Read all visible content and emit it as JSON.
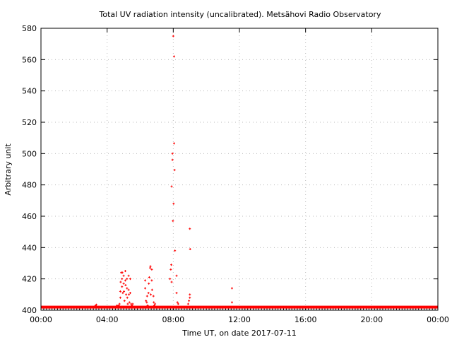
{
  "chart_data": {
    "type": "scatter",
    "title": "Total UV radiation intensity (uncalibrated). Metsähovi Radio Observatory",
    "xlabel": "Time UT, on date 2017-07-11",
    "ylabel": "Arbitrary unit",
    "xlim": [
      0,
      24
    ],
    "ylim": [
      400,
      580
    ],
    "xticks": [
      0,
      4,
      8,
      12,
      16,
      20,
      24
    ],
    "xtick_labels": [
      "00:00",
      "04:00",
      "08:00",
      "12:00",
      "16:00",
      "20:00",
      "00:00"
    ],
    "yticks": [
      400,
      420,
      440,
      460,
      480,
      500,
      520,
      540,
      560,
      580
    ],
    "ytick_labels": [
      "400",
      "420",
      "440",
      "460",
      "480",
      "500",
      "520",
      "540",
      "560",
      "580"
    ],
    "grid": true,
    "color": "#ff0000",
    "baseline": {
      "x": [
        0,
        24
      ],
      "y": 402
    },
    "points": [
      [
        3.3,
        403
      ],
      [
        3.35,
        403.5
      ],
      [
        4.6,
        403
      ],
      [
        4.7,
        403
      ],
      [
        4.75,
        404
      ],
      [
        4.8,
        408
      ],
      [
        4.8,
        412
      ],
      [
        4.82,
        418
      ],
      [
        4.85,
        424
      ],
      [
        4.9,
        415
      ],
      [
        4.9,
        420
      ],
      [
        4.92,
        424
      ],
      [
        4.95,
        411
      ],
      [
        5.0,
        417
      ],
      [
        5.0,
        422
      ],
      [
        5.02,
        412
      ],
      [
        5.05,
        406
      ],
      [
        5.1,
        425
      ],
      [
        5.1,
        419
      ],
      [
        5.12,
        416
      ],
      [
        5.15,
        410
      ],
      [
        5.2,
        420
      ],
      [
        5.2,
        414
      ],
      [
        5.22,
        408
      ],
      [
        5.25,
        404
      ],
      [
        5.3,
        422
      ],
      [
        5.3,
        413
      ],
      [
        5.32,
        410
      ],
      [
        5.35,
        405
      ],
      [
        5.4,
        420
      ],
      [
        5.4,
        411
      ],
      [
        5.45,
        404
      ],
      [
        5.5,
        403
      ],
      [
        5.55,
        404
      ],
      [
        6.3,
        414
      ],
      [
        6.3,
        419
      ],
      [
        6.35,
        406
      ],
      [
        6.4,
        405
      ],
      [
        6.42,
        409
      ],
      [
        6.45,
        403
      ],
      [
        6.5,
        411
      ],
      [
        6.52,
        417
      ],
      [
        6.55,
        421
      ],
      [
        6.6,
        427
      ],
      [
        6.62,
        428
      ],
      [
        6.64,
        410
      ],
      [
        6.7,
        419
      ],
      [
        6.7,
        426
      ],
      [
        6.72,
        413
      ],
      [
        6.8,
        409
      ],
      [
        6.82,
        405
      ],
      [
        6.85,
        403
      ],
      [
        6.9,
        404
      ],
      [
        7.8,
        420
      ],
      [
        7.85,
        426
      ],
      [
        7.88,
        429
      ],
      [
        7.9,
        418
      ],
      [
        7.95,
        500
      ],
      [
        7.95,
        496
      ],
      [
        7.9,
        479
      ],
      [
        7.98,
        457
      ],
      [
        8.0,
        575
      ],
      [
        8.02,
        468
      ],
      [
        8.05,
        562
      ],
      [
        8.05,
        506.5
      ],
      [
        8.08,
        489.5
      ],
      [
        8.1,
        438
      ],
      [
        8.2,
        422
      ],
      [
        8.2,
        411
      ],
      [
        8.3,
        404
      ],
      [
        8.25,
        405
      ],
      [
        9.0,
        452
      ],
      [
        9.02,
        439
      ],
      [
        9.0,
        410
      ],
      [
        9.0,
        408
      ],
      [
        8.95,
        406
      ],
      [
        8.9,
        404
      ],
      [
        11.55,
        414
      ],
      [
        11.55,
        405
      ]
    ]
  }
}
